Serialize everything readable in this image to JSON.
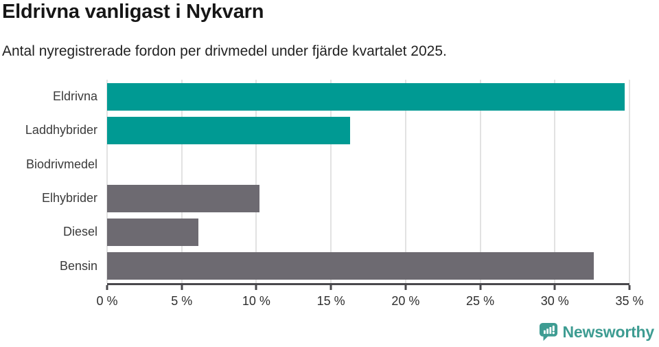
{
  "chart_data": {
    "type": "bar",
    "orientation": "horizontal",
    "title": "Eldrivna vanligast i Nykvarn",
    "subtitle": "Antal nyregistrerade fordon per drivmedel under fjärde kvartalet 2025.",
    "categories": [
      "Eldrivna",
      "Laddhybrider",
      "Biodrivmedel",
      "Elhybrider",
      "Diesel",
      "Bensin"
    ],
    "values": [
      34.7,
      16.3,
      0,
      10.2,
      6.1,
      32.6
    ],
    "bar_colors": [
      "#009a93",
      "#009a93",
      "#6d6a71",
      "#6d6a71",
      "#6d6a71",
      "#6d6a71"
    ],
    "xlim": [
      0,
      35
    ],
    "x_ticks": [
      0,
      5,
      10,
      15,
      20,
      25,
      30,
      35
    ],
    "x_tick_labels": [
      "0 %",
      "5 %",
      "10 %",
      "15 %",
      "20 %",
      "25 %",
      "30 %",
      "35 %"
    ],
    "grid": "vertical",
    "legend": "none",
    "unit": "%"
  },
  "colors": {
    "teal": "#009a93",
    "gray": "#6d6a71",
    "gridline": "#e2e2e2",
    "axis": "#49484c",
    "brand": "#3e9c92"
  },
  "footer": {
    "brand": "Newsworthy",
    "logo_icon": "newsworthy-chart-bubble-icon"
  }
}
